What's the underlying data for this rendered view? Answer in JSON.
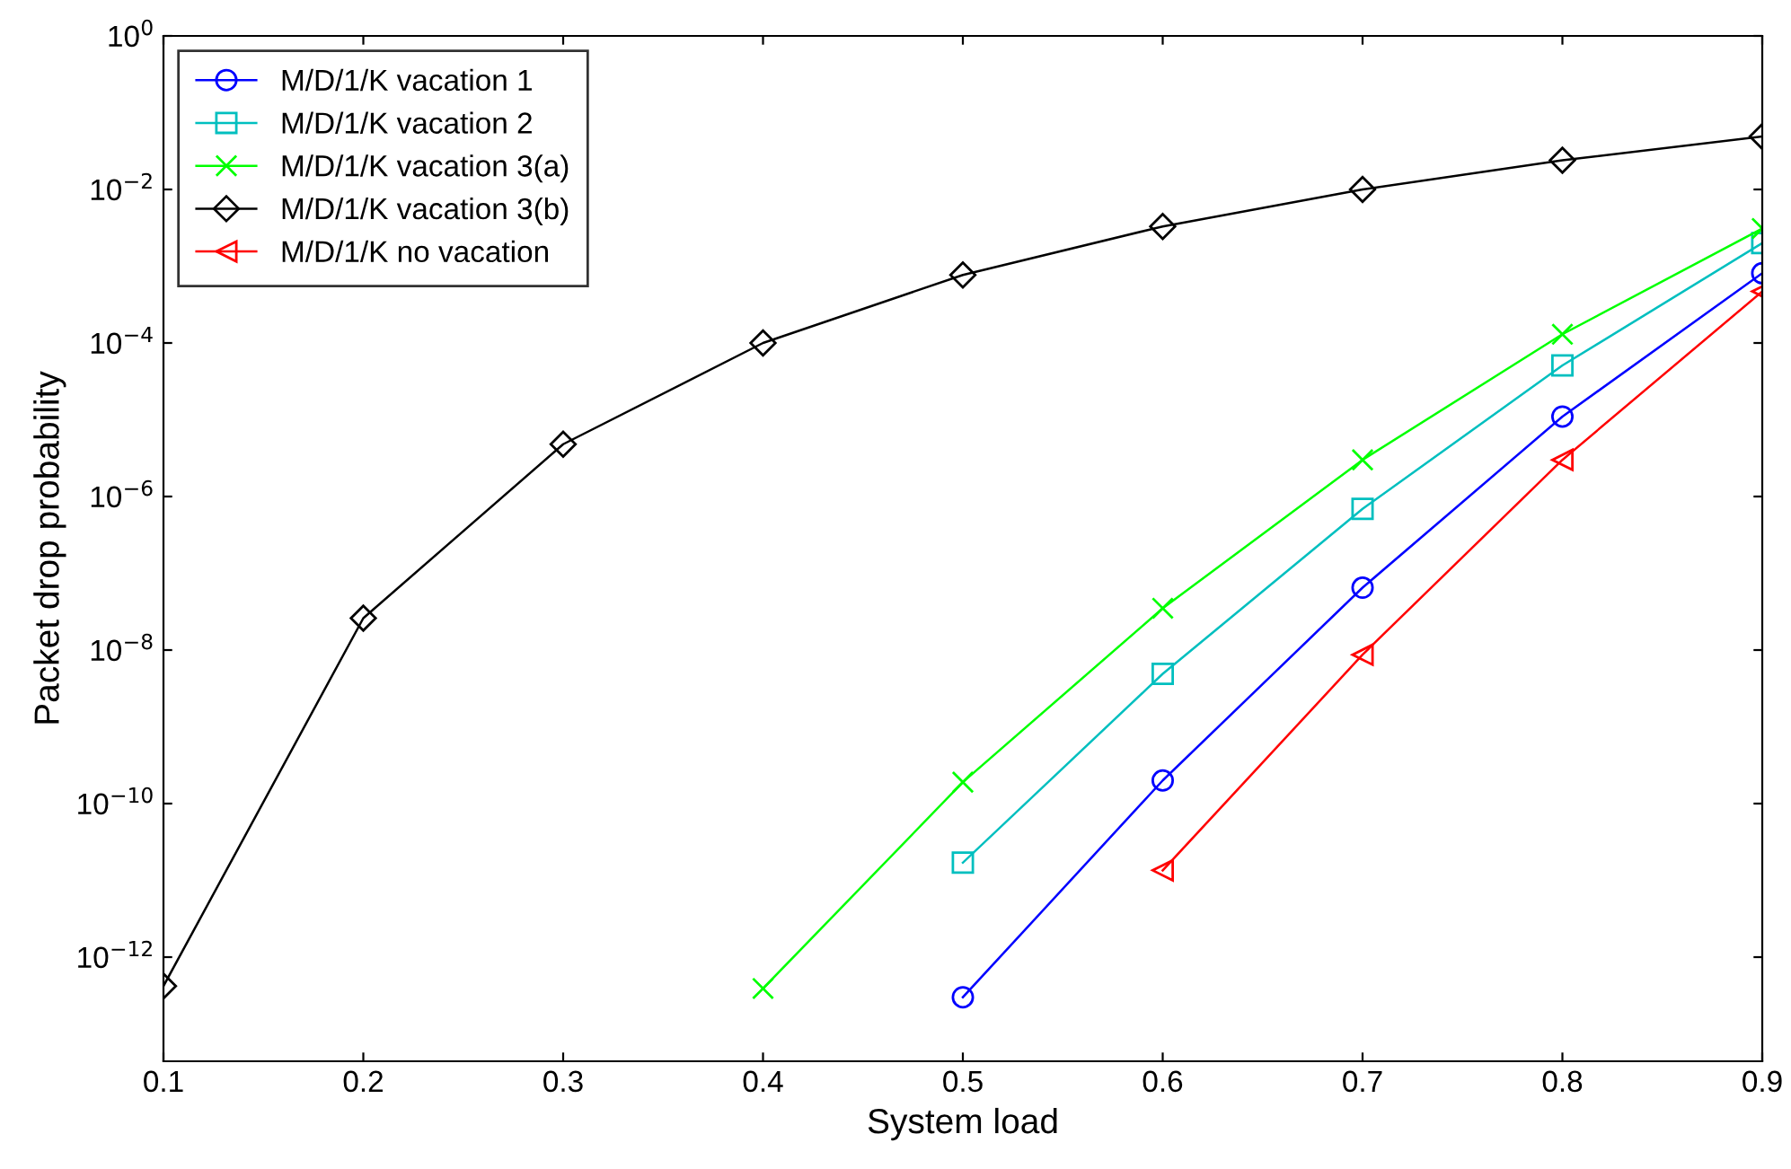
{
  "chart_data": {
    "type": "line",
    "xlabel": "System load",
    "ylabel": "Packet drop probability",
    "log": "y",
    "x": [
      0.1,
      0.2,
      0.3,
      0.4,
      0.5,
      0.6,
      0.7,
      0.8,
      0.9
    ],
    "xlim": [
      0.1,
      0.9
    ],
    "xticks": [
      0.1,
      0.2,
      0.3,
      0.4,
      0.5,
      0.6,
      0.7,
      0.8,
      0.9
    ],
    "ylim": [
      4.4e-14,
      1
    ],
    "yticks": [
      {
        "value": 1e-12,
        "label": "10$^{−12}$"
      },
      {
        "value": 1e-10,
        "label": "10$^{−10}$"
      },
      {
        "value": 1e-08,
        "label": "10$^{−8}$"
      },
      {
        "value": 1e-06,
        "label": "10$^{−6}$"
      },
      {
        "value": 0.0001,
        "label": "10$^{−4}$"
      },
      {
        "value": 0.01,
        "label": "10$^{−2}$"
      },
      {
        "value": 1,
        "label": "10$^{0}$"
      }
    ],
    "legend": "top left",
    "grid": false,
    "series": [
      {
        "name": "M/D/1/K vacation 1",
        "color": "#0000ff",
        "marker": "circle",
        "values": [
          null,
          null,
          null,
          null,
          3e-13,
          2e-10,
          6.5e-08,
          1.1e-05,
          0.00081
        ]
      },
      {
        "name": "M/D/1/K vacation 2",
        "color": "#00bfbf",
        "marker": "square",
        "values": [
          null,
          null,
          null,
          null,
          1.7e-11,
          4.9e-09,
          6.9e-07,
          5.1e-05,
          0.002
        ]
      },
      {
        "name": "M/D/1/K vacation 3(a)",
        "color": "#00ff00",
        "marker": "cross",
        "values": [
          null,
          null,
          null,
          3.9e-13,
          1.9e-10,
          3.5e-08,
          3e-06,
          0.00013,
          0.0031
        ]
      },
      {
        "name": "M/D/1/K vacation 3(b)",
        "color": "#000000",
        "marker": "diamond",
        "values": [
          4.2e-13,
          2.6e-08,
          4.8e-06,
          0.0001,
          0.00077,
          0.0033,
          0.01,
          0.024,
          0.049
        ]
      },
      {
        "name": "M/D/1/K no vacation",
        "color": "#ff0000",
        "marker": "triangle",
        "values": [
          null,
          null,
          null,
          null,
          null,
          1.35e-11,
          8.7e-09,
          3e-06,
          0.00047
        ]
      }
    ]
  }
}
